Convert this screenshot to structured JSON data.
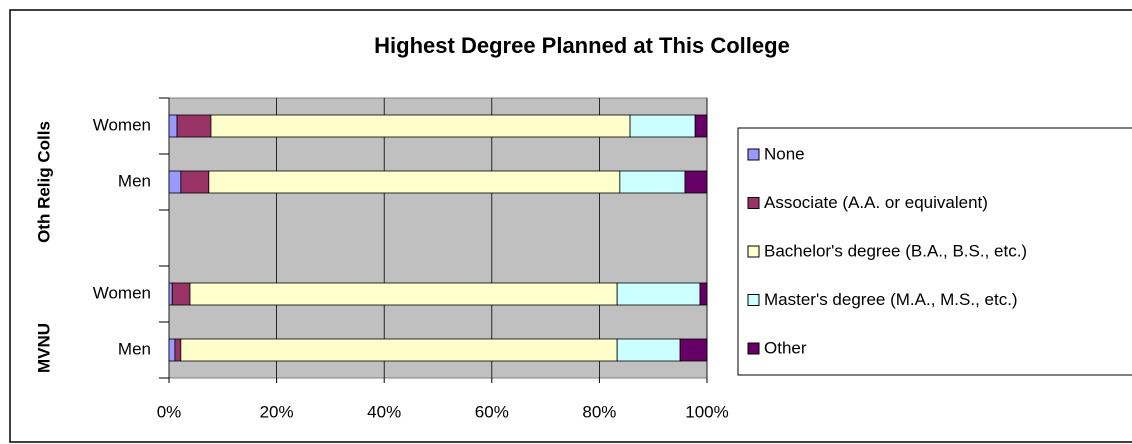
{
  "chart_data": {
    "type": "stacked-bar-horizontal",
    "title": "Highest Degree Planned at This College",
    "categories": [
      "Women",
      "Men",
      null,
      "Women",
      "Men"
    ],
    "groups": [
      "Oth Relig Colls",
      "MVNU"
    ],
    "series": [
      {
        "name": "None",
        "color": "#9999ff",
        "values": [
          1.5,
          2.2,
          null,
          0.6,
          1.1
        ]
      },
      {
        "name": "Associate (A.A. or equivalent)",
        "color": "#993366",
        "values": [
          6.3,
          5.2,
          null,
          3.3,
          1.1
        ]
      },
      {
        "name": "Bachelor's degree (B.A., B.S., etc.)",
        "color": "#ffffcc",
        "values": [
          77.9,
          76.4,
          null,
          79.4,
          81.1
        ]
      },
      {
        "name": "Master's degree (M.A., M.S., etc.)",
        "color": "#ccffff",
        "values": [
          12.1,
          12.1,
          null,
          15.4,
          11.7
        ]
      },
      {
        "name": "Other",
        "color": "#660066",
        "values": [
          2.2,
          4.1,
          null,
          1.3,
          5.0
        ]
      }
    ],
    "xlim": [
      0,
      100
    ],
    "xticks": [
      {
        "value": 0,
        "label": "0%"
      },
      {
        "value": 20,
        "label": "20%"
      },
      {
        "value": 40,
        "label": "40%"
      },
      {
        "value": 60,
        "label": "60%"
      },
      {
        "value": 80,
        "label": "80%"
      },
      {
        "value": 100,
        "label": "100%"
      }
    ],
    "grid": true,
    "legend": "right"
  }
}
